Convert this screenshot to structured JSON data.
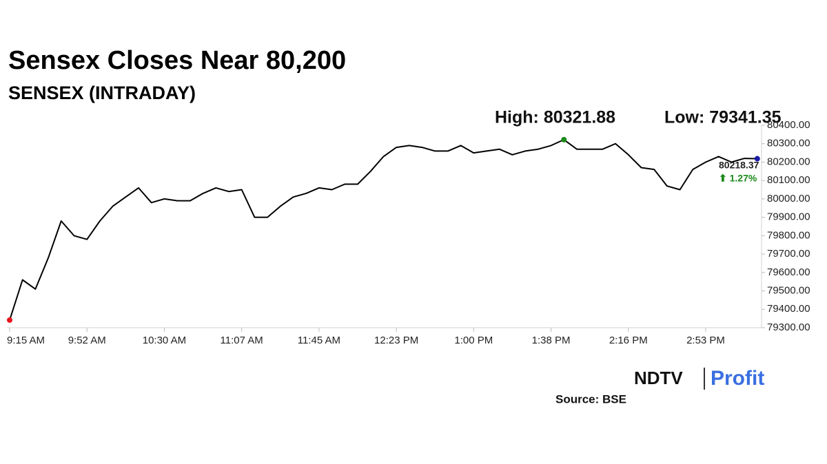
{
  "chart_data": {
    "type": "line",
    "title": "Sensex Closes Near 80,200",
    "subtitle": "SENSEX (INTRADAY)",
    "categories": [
      "9:15 AM",
      null,
      null,
      null,
      null,
      null,
      "9:52 AM",
      null,
      null,
      null,
      null,
      null,
      "10:30 AM",
      null,
      null,
      null,
      null,
      null,
      "11:07 AM",
      null,
      null,
      null,
      null,
      null,
      "11:45 AM",
      null,
      null,
      null,
      null,
      null,
      "12:23 PM",
      null,
      null,
      null,
      null,
      null,
      "1:00 PM",
      null,
      null,
      null,
      null,
      null,
      "1:38 PM",
      null,
      null,
      null,
      null,
      null,
      "2:16 PM",
      null,
      null,
      null,
      null,
      null,
      "2:53 PM",
      null,
      null,
      null,
      null
    ],
    "series": [
      {
        "name": "SENSEX",
        "color": "#000000",
        "values": [
          79341.35,
          79560,
          79510,
          79680,
          79880,
          79800,
          79780,
          79880,
          79960,
          80010,
          80060,
          79980,
          80000,
          79990,
          79990,
          80030,
          80060,
          80040,
          80050,
          79900,
          79900,
          79960,
          80010,
          80030,
          80060,
          80050,
          80080,
          80080,
          80150,
          80230,
          80280,
          80290,
          80280,
          80260,
          80260,
          80290,
          80250,
          80260,
          80270,
          80240,
          80260,
          80270,
          80290,
          80321.88,
          80270,
          80270,
          80270,
          80300,
          80240,
          80170,
          80160,
          80070,
          80050,
          80160,
          80200,
          80230,
          80200,
          80220,
          80218.37
        ]
      }
    ],
    "ylim": [
      79300,
      80400
    ],
    "yticks": [
      {
        "value": 79300,
        "label": "79300.00"
      },
      {
        "value": 79400,
        "label": "79400.00"
      },
      {
        "value": 79500,
        "label": "79500.00"
      },
      {
        "value": 79600,
        "label": "79600.00"
      },
      {
        "value": 79700,
        "label": "79700.00"
      },
      {
        "value": 79800,
        "label": "79800.00"
      },
      {
        "value": 79900,
        "label": "79900.00"
      },
      {
        "value": 80000,
        "label": "80000.00"
      },
      {
        "value": 80100,
        "label": "80100.00"
      },
      {
        "value": 80200,
        "label": "80200.00"
      },
      {
        "value": 80300,
        "label": "80300.00"
      },
      {
        "value": 80400,
        "label": "80400.00"
      }
    ],
    "high_label": "High: 80321.88",
    "low_label": "Low: 79341.35",
    "last_label": "80218.37",
    "change_label": "⬆ 1.27%",
    "start_color": "#e8141c",
    "high_color": "#1a8a1a",
    "end_color": "#1a1aa8",
    "change_color": "#1a8a1a",
    "logo_left": "NDTV",
    "logo_right": "Profit",
    "source": "Source: BSE"
  }
}
